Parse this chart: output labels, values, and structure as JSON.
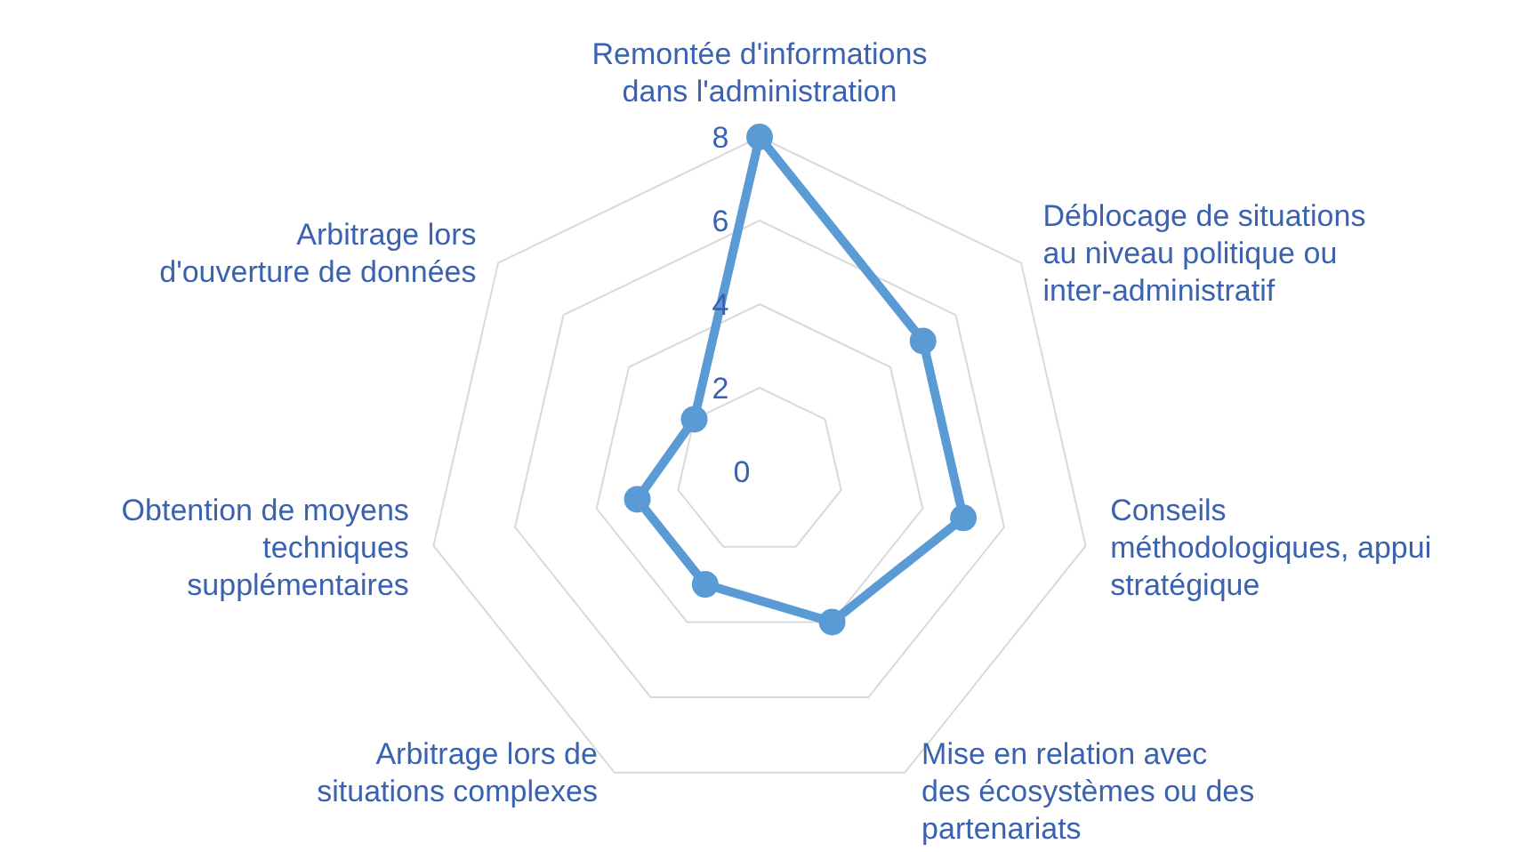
{
  "chart_data": {
    "type": "radar",
    "categories": [
      "Remontée d'informations dans l'administration",
      "Déblocage de situations au niveau politique ou inter-administratif",
      "Conseils méthodologiques, appui stratégique",
      "Mise en relation avec des écosystèmes ou des partenariats",
      "Arbitrage lors de situations complexes",
      "Obtention de moyens techniques supplémentaires",
      "Arbitrage lors d'ouverture de données"
    ],
    "series": [
      {
        "color": "#5b9bd5",
        "values": [
          8,
          5,
          5,
          4,
          3,
          3,
          2
        ]
      }
    ],
    "ylim": [
      0,
      8
    ],
    "yticks": [
      0,
      2,
      4,
      6,
      8
    ],
    "grid": true,
    "marker": "circle",
    "legend": false
  }
}
